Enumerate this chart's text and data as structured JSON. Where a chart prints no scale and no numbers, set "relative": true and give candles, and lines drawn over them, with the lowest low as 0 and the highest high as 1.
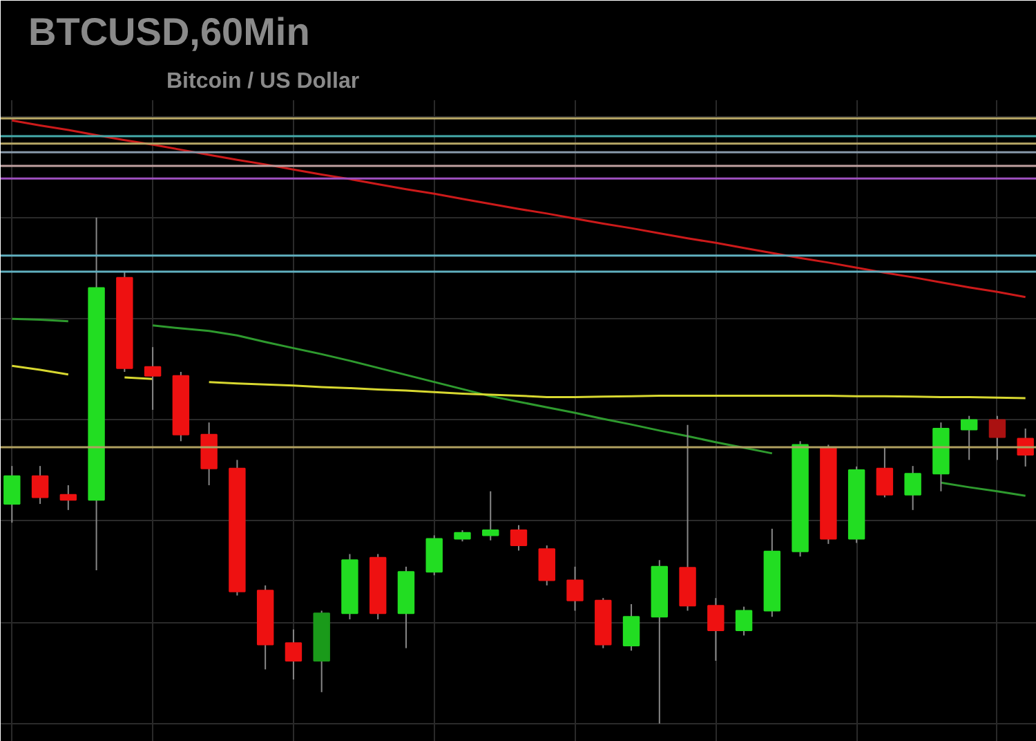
{
  "chart_data": {
    "type": "candlestick",
    "title": "BTCUSD,60Min",
    "subtitle": "Bitcoin / US Dollar",
    "relative": true,
    "grid": true,
    "categories": [
      null,
      null,
      null,
      null,
      null,
      null,
      null,
      null,
      null,
      null,
      null,
      null,
      null,
      null,
      null,
      null,
      null,
      null,
      null,
      null,
      null,
      null,
      null,
      null,
      null,
      null,
      null,
      null,
      null,
      null,
      null,
      null,
      null,
      null,
      null,
      null,
      null
    ],
    "ohlc": [
      [
        0.434,
        0.509,
        0.397,
        0.489
      ],
      [
        0.489,
        0.509,
        0.434,
        0.447
      ],
      [
        0.452,
        0.471,
        0.422,
        0.442
      ],
      [
        0.442,
        1.0,
        0.303,
        0.861
      ],
      [
        0.881,
        0.893,
        0.695,
        0.702
      ],
      [
        0.705,
        0.744,
        0.62,
        0.687
      ],
      [
        0.687,
        0.695,
        0.558,
        0.571
      ],
      [
        0.571,
        0.595,
        0.471,
        0.504
      ],
      [
        0.504,
        0.521,
        0.253,
        0.261
      ],
      [
        0.263,
        0.273,
        0.107,
        0.156
      ],
      [
        0.159,
        0.186,
        0.087,
        0.124
      ],
      [
        0.124,
        0.223,
        0.062,
        0.218
      ],
      [
        0.218,
        0.335,
        0.206,
        0.323
      ],
      [
        0.328,
        0.335,
        0.206,
        0.218
      ],
      [
        0.218,
        0.31,
        0.149,
        0.3
      ],
      [
        0.3,
        0.372,
        0.293,
        0.365
      ],
      [
        0.365,
        0.382,
        0.36,
        0.377
      ],
      [
        0.372,
        0.459,
        0.362,
        0.382
      ],
      [
        0.382,
        0.392,
        0.342,
        0.352
      ],
      [
        0.345,
        0.352,
        0.273,
        0.283
      ],
      [
        0.283,
        0.31,
        0.223,
        0.243
      ],
      [
        0.243,
        0.248,
        0.149,
        0.156
      ],
      [
        0.154,
        0.236,
        0.144,
        0.211
      ],
      [
        0.211,
        0.323,
        0.0,
        0.31
      ],
      [
        0.308,
        0.59,
        0.223,
        0.233
      ],
      [
        0.233,
        0.248,
        0.124,
        0.184
      ],
      [
        0.184,
        0.231,
        0.174,
        0.223
      ],
      [
        0.223,
        0.385,
        0.211,
        0.34
      ],
      [
        0.34,
        0.558,
        0.33,
        0.551
      ],
      [
        0.546,
        0.551,
        0.355,
        0.365
      ],
      [
        0.365,
        0.508,
        0.357,
        0.501
      ],
      [
        0.504,
        0.546,
        0.447,
        0.452
      ],
      [
        0.452,
        0.509,
        0.422,
        0.494
      ],
      [
        0.494,
        0.595,
        0.459,
        0.583
      ],
      [
        0.581,
        0.608,
        0.521,
        0.6
      ],
      [
        0.6,
        0.608,
        0.521,
        0.566
      ],
      [
        0.563,
        0.583,
        0.508,
        0.531
      ]
    ],
    "colors": [
      "#22dd22",
      "#ee1111",
      "#ee1111",
      "#22dd22",
      "#ee1111",
      "#ee1111",
      "#ee1111",
      "#ee1111",
      "#ee1111",
      "#ee1111",
      "#ee1111",
      "#1a9a1a",
      "#22dd22",
      "#ee1111",
      "#22dd22",
      "#22dd22",
      "#22dd22",
      "#22dd22",
      "#ee1111",
      "#ee1111",
      "#ee1111",
      "#ee1111",
      "#22dd22",
      "#22dd22",
      "#ee1111",
      "#ee1111",
      "#22dd22",
      "#22dd22",
      "#22dd22",
      "#ee1111",
      "#22dd22",
      "#ee1111",
      "#22dd22",
      "#22dd22",
      "#22dd22",
      "#aa1111",
      "#ee1111"
    ],
    "series": [
      {
        "type": "line",
        "color": "#cc1a1a",
        "values": [
          1.192,
          1.182,
          1.173,
          1.163,
          1.153,
          1.144,
          1.134,
          1.124,
          1.114,
          1.105,
          1.095,
          1.085,
          1.076,
          1.066,
          1.056,
          1.047,
          1.037,
          1.027,
          1.017,
          1.008,
          0.998,
          0.988,
          0.979,
          0.969,
          0.959,
          0.95,
          0.94,
          0.93,
          0.92,
          0.911,
          0.901,
          0.891,
          0.882,
          0.872,
          0.862,
          0.853,
          0.843
        ]
      },
      {
        "type": "line",
        "color": "#2e9a2e",
        "values": [
          0.8,
          0.798,
          0.795,
          null,
          null,
          0.787,
          0.781,
          0.776,
          0.767,
          0.754,
          0.742,
          0.73,
          0.717,
          0.703,
          0.689,
          0.675,
          0.661,
          0.647,
          0.636,
          0.625,
          0.614,
          0.602,
          0.591,
          0.579,
          0.568,
          0.556,
          0.545,
          0.534,
          null,
          null,
          null,
          null,
          null,
          0.476,
          0.467,
          0.459,
          0.45
        ]
      },
      {
        "type": "line",
        "color": "#d8d830",
        "values": [
          0.707,
          0.699,
          0.69,
          null,
          0.684,
          0.681,
          null,
          0.675,
          0.672,
          0.67,
          0.668,
          0.665,
          0.663,
          0.66,
          0.658,
          0.655,
          0.652,
          0.65,
          0.648,
          0.645,
          0.645,
          0.646,
          0.647,
          0.648,
          0.648,
          0.648,
          0.648,
          0.648,
          0.648,
          0.648,
          0.647,
          0.647,
          0.646,
          0.645,
          0.645,
          0.644,
          0.643
        ]
      }
    ],
    "ref_lines": [
      {
        "axis": "y",
        "value": 1.196,
        "color": "#b8a866"
      },
      {
        "axis": "y",
        "value": 1.161,
        "color": "#44aaaa"
      },
      {
        "axis": "y",
        "value": 1.146,
        "color": "#b8a866"
      },
      {
        "axis": "y",
        "value": 1.129,
        "color": "#8899aa"
      },
      {
        "axis": "y",
        "value": 1.102,
        "color": "#c0a0a0"
      },
      {
        "axis": "y",
        "value": 1.077,
        "color": "#a050c0"
      },
      {
        "axis": "y",
        "value": 0.925,
        "color": "#60b0c0"
      },
      {
        "axis": "y",
        "value": 0.893,
        "color": "#60b0c0"
      },
      {
        "axis": "y",
        "value": 0.546,
        "color": "#b0a060"
      }
    ]
  }
}
